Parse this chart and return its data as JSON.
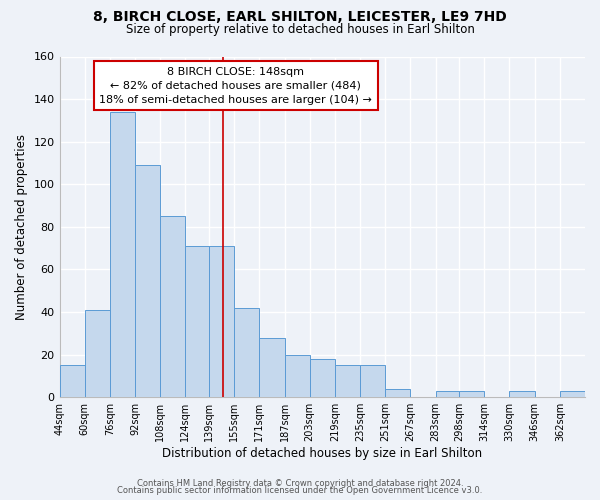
{
  "title": "8, BIRCH CLOSE, EARL SHILTON, LEICESTER, LE9 7HD",
  "subtitle": "Size of property relative to detached houses in Earl Shilton",
  "xlabel": "Distribution of detached houses by size in Earl Shilton",
  "ylabel": "Number of detached properties",
  "bin_labels": [
    "44sqm",
    "60sqm",
    "76sqm",
    "92sqm",
    "108sqm",
    "124sqm",
    "139sqm",
    "155sqm",
    "171sqm",
    "187sqm",
    "203sqm",
    "219sqm",
    "235sqm",
    "251sqm",
    "267sqm",
    "283sqm",
    "298sqm",
    "314sqm",
    "330sqm",
    "346sqm",
    "362sqm"
  ],
  "bar_values": [
    15,
    41,
    134,
    109,
    85,
    71,
    71,
    42,
    28,
    20,
    18,
    15,
    15,
    4,
    0,
    3,
    3,
    0,
    3,
    0,
    3
  ],
  "bar_color": "#c5d8ed",
  "bar_edge_color": "#5b9bd5",
  "vline_x": 148,
  "vline_color": "#cc0000",
  "ylim": [
    0,
    160
  ],
  "yticks": [
    0,
    20,
    40,
    60,
    80,
    100,
    120,
    140,
    160
  ],
  "annotation_line1": "8 BIRCH CLOSE: 148sqm",
  "annotation_line2": "← 82% of detached houses are smaller (484)",
  "annotation_line3": "18% of semi-detached houses are larger (104) →",
  "annotation_box_color": "#ffffff",
  "annotation_box_edge_color": "#cc0000",
  "footer_line1": "Contains HM Land Registry data © Crown copyright and database right 2024.",
  "footer_line2": "Contains public sector information licensed under the Open Government Licence v3.0.",
  "background_color": "#eef2f8",
  "grid_color": "#ffffff",
  "bin_edges": [
    44,
    60,
    76,
    92,
    108,
    124,
    139,
    155,
    171,
    187,
    203,
    219,
    235,
    251,
    267,
    283,
    298,
    314,
    330,
    346,
    362,
    378
  ]
}
